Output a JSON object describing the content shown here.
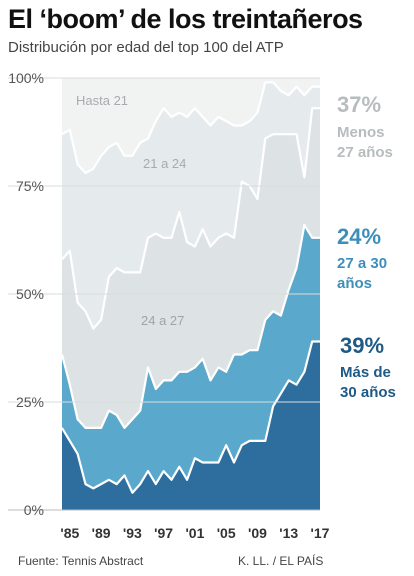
{
  "title": "El ‘boom’ de los treintañeros",
  "subtitle": "Distribución por edad del top 100 del ATP",
  "source": "Fuente: Tennis Abstract",
  "credit": "K. LL. / EL PAÍS",
  "chart_data": {
    "type": "area",
    "stacked": true,
    "x": [
      1984,
      1985,
      1986,
      1987,
      1988,
      1989,
      1990,
      1991,
      1992,
      1993,
      1994,
      1995,
      1996,
      1997,
      1998,
      1999,
      2000,
      2001,
      2002,
      2003,
      2004,
      2005,
      2006,
      2007,
      2008,
      2009,
      2010,
      2011,
      2012,
      2013,
      2014,
      2015,
      2016,
      2017
    ],
    "x_ticks": [
      "'85",
      "'89",
      "'93",
      "'97",
      "'01",
      "'05",
      "'09",
      "'13",
      "'17"
    ],
    "y_ticks": [
      "0%",
      "25%",
      "50%",
      "75%",
      "100%"
    ],
    "ylim": [
      0,
      100
    ],
    "grid": true,
    "series": [
      {
        "name": "Más de 30 años",
        "color": "#2e6e9e",
        "values": [
          19,
          16,
          13,
          6,
          5,
          6,
          7,
          6,
          8,
          4,
          6,
          9,
          6,
          9,
          7,
          10,
          7,
          12,
          11,
          11,
          11,
          15,
          11,
          15,
          16,
          16,
          16,
          24,
          27,
          30,
          29,
          32,
          39,
          39
        ]
      },
      {
        "name": "27 a 30 años",
        "color": "#5aa8cc",
        "values": [
          17,
          13,
          8,
          13,
          14,
          13,
          16,
          16,
          11,
          17,
          17,
          24,
          22,
          21,
          23,
          22,
          25,
          21,
          24,
          19,
          22,
          17,
          25,
          21,
          21,
          21,
          28,
          22,
          18,
          21,
          27,
          34,
          24,
          24
        ]
      },
      {
        "name": "24 a 27",
        "color": "#dde2e4",
        "values": [
          22,
          31,
          27,
          27,
          23,
          25,
          31,
          34,
          36,
          34,
          32,
          30,
          36,
          33,
          33,
          37,
          30,
          28,
          30,
          31,
          30,
          32,
          27,
          40,
          38,
          35,
          42,
          41,
          42,
          36,
          31,
          11,
          30,
          30
        ]
      },
      {
        "name": "21 a 24",
        "color": "#e5eaec",
        "values": [
          29,
          28,
          32,
          32,
          37,
          38,
          30,
          29,
          27,
          27,
          30,
          23,
          26,
          30,
          28,
          23,
          29,
          32,
          26,
          28,
          28,
          26,
          26,
          13,
          15,
          20,
          13,
          12,
          10,
          9,
          11,
          19,
          5,
          5
        ]
      },
      {
        "name": "Hasta 21",
        "color": "#f1f3f3",
        "values": [
          13,
          12,
          20,
          22,
          21,
          18,
          16,
          15,
          18,
          18,
          15,
          14,
          10,
          7,
          9,
          8,
          9,
          7,
          9,
          11,
          9,
          10,
          11,
          11,
          10,
          8,
          1,
          1,
          3,
          4,
          2,
          4,
          2,
          2
        ]
      }
    ],
    "right_labels": {
      "menos27_pct": "37%",
      "menos27_label_line1": "Menos",
      "menos27_label_line2": "27 años",
      "mid_pct": "24%",
      "mid_label_line1": "27 a 30",
      "mid_label_line2": "años",
      "more30_pct": "39%",
      "more30_label_line1": "Más de",
      "more30_label_line2": "30 años"
    },
    "inner_labels": {
      "hasta21": "Hasta 21",
      "a21_24": "21 a 24",
      "a24_27": "24 a 27"
    }
  }
}
